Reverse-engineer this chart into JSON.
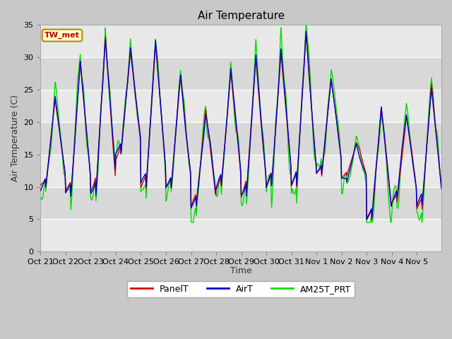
{
  "title": "Air Temperature",
  "ylabel": "Air Temperature (C)",
  "xlabel": "Time",
  "annotation": "TW_met",
  "ylim": [
    0,
    35
  ],
  "yticks": [
    0,
    5,
    10,
    15,
    20,
    25,
    30,
    35
  ],
  "xtick_labels": [
    "Oct 21",
    "Oct 22",
    "Oct 23",
    "Oct 24",
    "Oct 25",
    "Oct 26",
    "Oct 27",
    "Oct 28",
    "Oct 29",
    "Oct 30",
    "Oct 31",
    "Nov 1",
    "Nov 2",
    "Nov 3",
    "Nov 4",
    "Nov 5"
  ],
  "panel_color": "#dd0000",
  "air_color": "#0000cc",
  "am25_color": "#00dd00",
  "plot_bg_light": "#e8e8e8",
  "plot_bg_dark": "#d0d0d0",
  "grid_color": "#ffffff",
  "annotation_facecolor": "#ffffcc",
  "annotation_edgecolor": "#bb8800",
  "annotation_textcolor": "#bb0000",
  "figsize": [
    6.4,
    4.8
  ],
  "dpi": 100,
  "linewidth": 1.0
}
